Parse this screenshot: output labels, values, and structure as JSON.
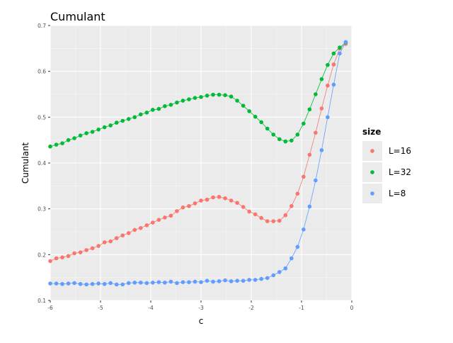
{
  "chart_data": {
    "type": "line",
    "title": "Cumulant",
    "xlabel": "c",
    "ylabel": "Cumulant",
    "xlim": [
      -6,
      0
    ],
    "ylim": [
      0.1,
      0.7
    ],
    "x_ticks": [
      -6,
      -5,
      -4,
      -3,
      -2,
      -1,
      0
    ],
    "x_tick_labels": [
      "-6",
      "-5",
      "-4",
      "-3",
      "-2",
      "-1",
      "0"
    ],
    "y_ticks": [
      0.1,
      0.2,
      0.3,
      0.4,
      0.5,
      0.6,
      0.7
    ],
    "y_tick_labels": [
      "0.1",
      "0.2",
      "0.3",
      "0.4",
      "0.5",
      "0.6",
      "0.7"
    ],
    "grid": true,
    "legend": {
      "title": "size",
      "position": "right",
      "entries": [
        "L=16",
        "L=32",
        "L=8"
      ]
    },
    "series": [
      {
        "name": "L=16",
        "color": "#f8766d",
        "x": [
          -6.0,
          -5.88,
          -5.76,
          -5.64,
          -5.52,
          -5.4,
          -5.28,
          -5.16,
          -5.04,
          -4.92,
          -4.8,
          -4.68,
          -4.56,
          -4.44,
          -4.32,
          -4.2,
          -4.08,
          -3.96,
          -3.84,
          -3.72,
          -3.6,
          -3.48,
          -3.36,
          -3.24,
          -3.12,
          -3.0,
          -2.88,
          -2.76,
          -2.64,
          -2.52,
          -2.4,
          -2.28,
          -2.16,
          -2.04,
          -1.92,
          -1.8,
          -1.68,
          -1.56,
          -1.44,
          -1.32,
          -1.2,
          -1.08,
          -0.96,
          -0.84,
          -0.72,
          -0.6,
          -0.48,
          -0.36,
          -0.24,
          -0.12
        ],
        "y": [
          0.186,
          0.192,
          0.194,
          0.197,
          0.203,
          0.205,
          0.21,
          0.214,
          0.219,
          0.227,
          0.229,
          0.236,
          0.242,
          0.247,
          0.254,
          0.258,
          0.264,
          0.27,
          0.276,
          0.281,
          0.285,
          0.295,
          0.303,
          0.306,
          0.312,
          0.318,
          0.32,
          0.325,
          0.326,
          0.323,
          0.318,
          0.313,
          0.304,
          0.294,
          0.288,
          0.28,
          0.273,
          0.273,
          0.274,
          0.286,
          0.306,
          0.333,
          0.37,
          0.418,
          0.466,
          0.519,
          0.569,
          0.615,
          0.65,
          0.66
        ]
      },
      {
        "name": "L=32",
        "color": "#00ba38",
        "x": [
          -6.0,
          -5.88,
          -5.76,
          -5.64,
          -5.52,
          -5.4,
          -5.28,
          -5.16,
          -5.04,
          -4.92,
          -4.8,
          -4.68,
          -4.56,
          -4.44,
          -4.32,
          -4.2,
          -4.08,
          -3.96,
          -3.84,
          -3.72,
          -3.6,
          -3.48,
          -3.36,
          -3.24,
          -3.12,
          -3.0,
          -2.88,
          -2.76,
          -2.64,
          -2.52,
          -2.4,
          -2.28,
          -2.16,
          -2.04,
          -1.92,
          -1.8,
          -1.68,
          -1.56,
          -1.44,
          -1.32,
          -1.2,
          -1.08,
          -0.96,
          -0.84,
          -0.72,
          -0.6,
          -0.48,
          -0.36,
          -0.24,
          -0.12
        ],
        "y": [
          0.436,
          0.44,
          0.443,
          0.45,
          0.454,
          0.46,
          0.465,
          0.468,
          0.473,
          0.478,
          0.482,
          0.488,
          0.492,
          0.496,
          0.5,
          0.506,
          0.51,
          0.516,
          0.518,
          0.524,
          0.527,
          0.532,
          0.536,
          0.539,
          0.542,
          0.544,
          0.547,
          0.549,
          0.549,
          0.548,
          0.545,
          0.536,
          0.525,
          0.513,
          0.501,
          0.489,
          0.475,
          0.462,
          0.452,
          0.447,
          0.449,
          0.462,
          0.486,
          0.517,
          0.55,
          0.583,
          0.614,
          0.639,
          0.652,
          0.663
        ]
      },
      {
        "name": "L=8",
        "color": "#619cff",
        "x": [
          -6.0,
          -5.88,
          -5.76,
          -5.64,
          -5.52,
          -5.4,
          -5.28,
          -5.16,
          -5.04,
          -4.92,
          -4.8,
          -4.68,
          -4.56,
          -4.44,
          -4.32,
          -4.2,
          -4.08,
          -3.96,
          -3.84,
          -3.72,
          -3.6,
          -3.48,
          -3.36,
          -3.24,
          -3.12,
          -3.0,
          -2.88,
          -2.76,
          -2.64,
          -2.52,
          -2.4,
          -2.28,
          -2.16,
          -2.04,
          -1.92,
          -1.8,
          -1.68,
          -1.56,
          -1.44,
          -1.32,
          -1.2,
          -1.08,
          -0.96,
          -0.84,
          -0.72,
          -0.6,
          -0.48,
          -0.36,
          -0.24,
          -0.12
        ],
        "y": [
          0.137,
          0.137,
          0.136,
          0.137,
          0.138,
          0.136,
          0.135,
          0.136,
          0.137,
          0.136,
          0.138,
          0.135,
          0.135,
          0.138,
          0.139,
          0.139,
          0.138,
          0.139,
          0.14,
          0.139,
          0.141,
          0.138,
          0.14,
          0.14,
          0.141,
          0.14,
          0.143,
          0.141,
          0.142,
          0.144,
          0.142,
          0.143,
          0.143,
          0.145,
          0.145,
          0.147,
          0.149,
          0.155,
          0.162,
          0.17,
          0.192,
          0.217,
          0.255,
          0.305,
          0.362,
          0.428,
          0.5,
          0.571,
          0.639,
          0.664
        ]
      }
    ]
  }
}
